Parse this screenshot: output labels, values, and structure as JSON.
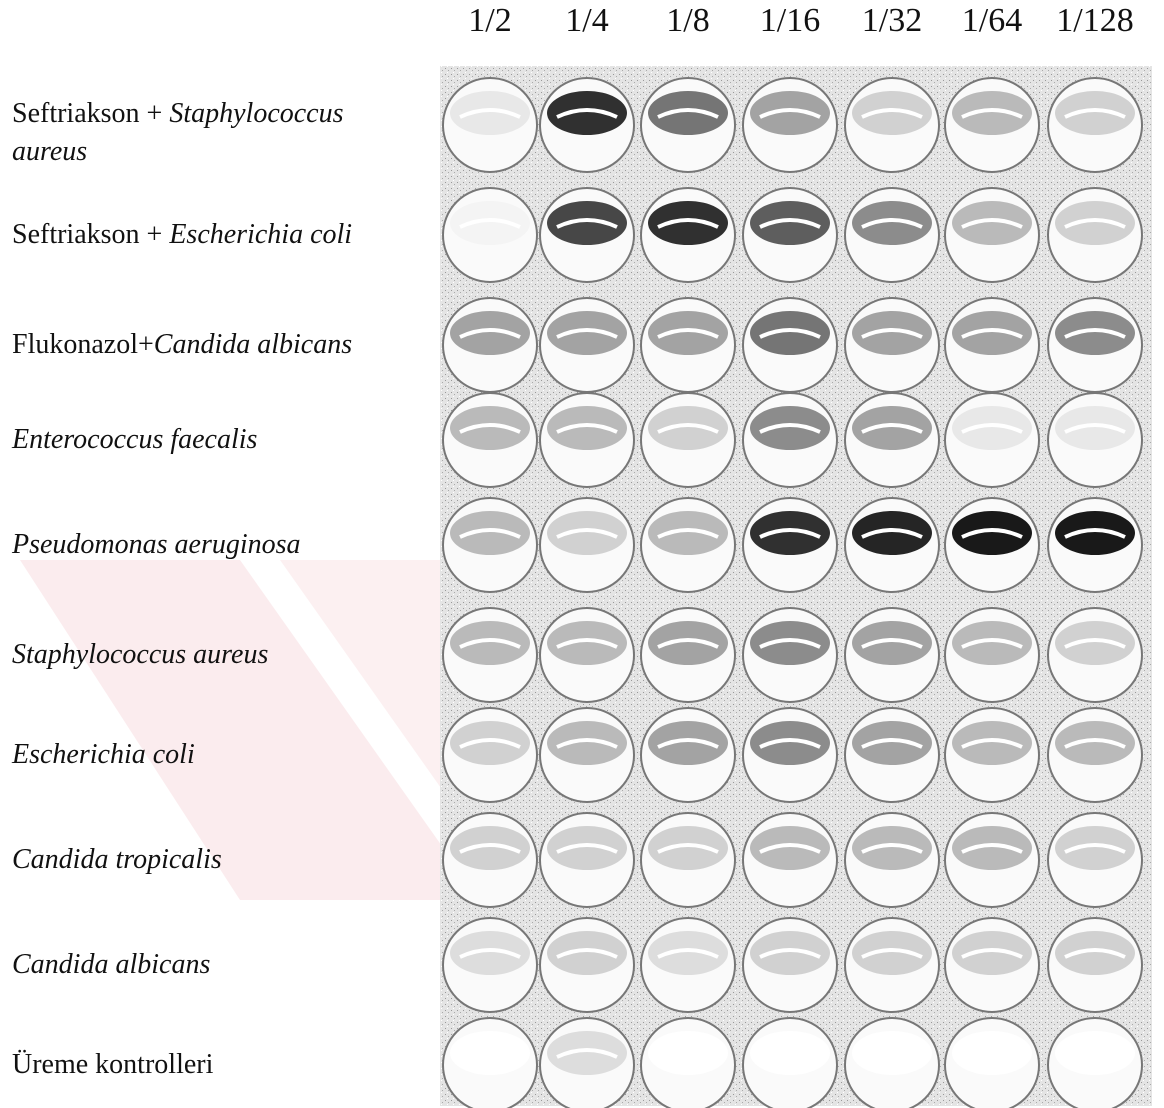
{
  "columns": [
    "1/2",
    "1/4",
    "1/8",
    "1/16",
    "1/32",
    "1/64",
    "1/128"
  ],
  "rows": [
    {
      "prefix": "Seftriakson + ",
      "organism": "Staphylococcus aureus"
    },
    {
      "prefix": "Seftriakson + ",
      "organism": "Escherichia coli"
    },
    {
      "prefix": "Flukonazol+",
      "organism": "Candida albicans"
    },
    {
      "organism": "Enterococcus faecalis"
    },
    {
      "organism": "Pseudomonas aeruginosa"
    },
    {
      "organism": "Staphylococcus aureus"
    },
    {
      "organism": "Escherichia coli"
    },
    {
      "organism": "Candida tropicalis"
    },
    {
      "organism": "Candida albicans"
    },
    {
      "prefix": "Üreme kontrolleri"
    }
  ]
}
